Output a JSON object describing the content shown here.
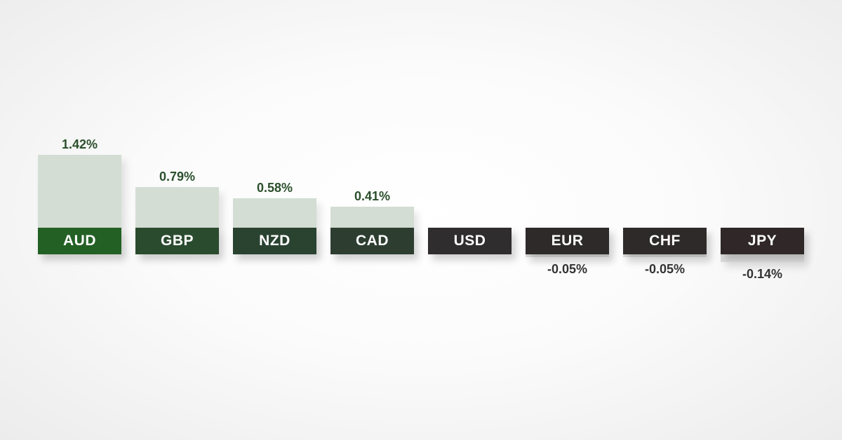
{
  "chart_data": {
    "type": "bar",
    "categories": [
      "AUD",
      "GBP",
      "NZD",
      "CAD",
      "USD",
      "EUR",
      "CHF",
      "JPY"
    ],
    "values": [
      1.42,
      0.79,
      0.58,
      0.41,
      0,
      -0.05,
      -0.05,
      -0.14
    ],
    "value_labels": [
      "1.42%",
      "0.79%",
      "0.58%",
      "0.41%",
      "",
      "-0.05%",
      "-0.05%",
      "-0.14%"
    ],
    "label_colors": [
      "#236024",
      "#2b4b2e",
      "#294330",
      "#2d3e31",
      "#2f2d2d",
      "#2e2a2a",
      "#2f2a2a",
      "#302828"
    ],
    "positive_text_color": "#2b4f2c",
    "negative_text_color": "#333333"
  }
}
